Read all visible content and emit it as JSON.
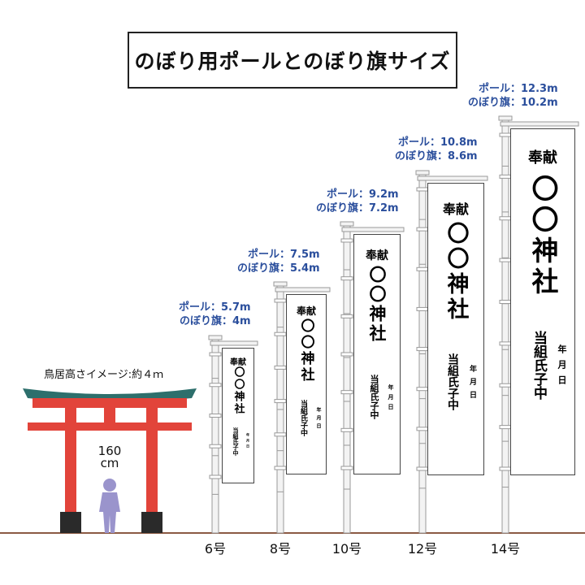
{
  "title": "のぼり用ポールとのぼり旗サイズ",
  "torii": {
    "caption": "鳥居高さイメージ:約４ｍ",
    "person_height": "160",
    "person_unit": "cm",
    "colors": {
      "torii_red": "#e2443a",
      "torii_black": "#2a2a2a",
      "roof_teal": "#2d6f6c",
      "person": "#9a94cc"
    }
  },
  "flag_text": {
    "offering": "奉献",
    "shrine": "〇〇神社",
    "sponsor": "当組氏子中",
    "date": "年月日"
  },
  "sizes": [
    {
      "label": "6号",
      "pole": "ポール：5.7m",
      "flag": "のぼり旗：4m"
    },
    {
      "label": "8号",
      "pole": "ポール：7.5m",
      "flag": "のぼり旗：5.4m"
    },
    {
      "label": "10号",
      "pole": "ポール：9.2m",
      "flag": "のぼり旗：7.2m"
    },
    {
      "label": "12号",
      "pole": "ポール：10.8m",
      "flag": "のぼり旗：8.6m"
    },
    {
      "label": "14号",
      "pole": "ポール：12.3m",
      "flag": "のぼり旗：10.2m"
    }
  ],
  "colors": {
    "spec_text": "#2a4e9c",
    "ground": "#8b5a44",
    "pole": "#f3f3f3",
    "pole_edge": "#9a9a9a"
  }
}
